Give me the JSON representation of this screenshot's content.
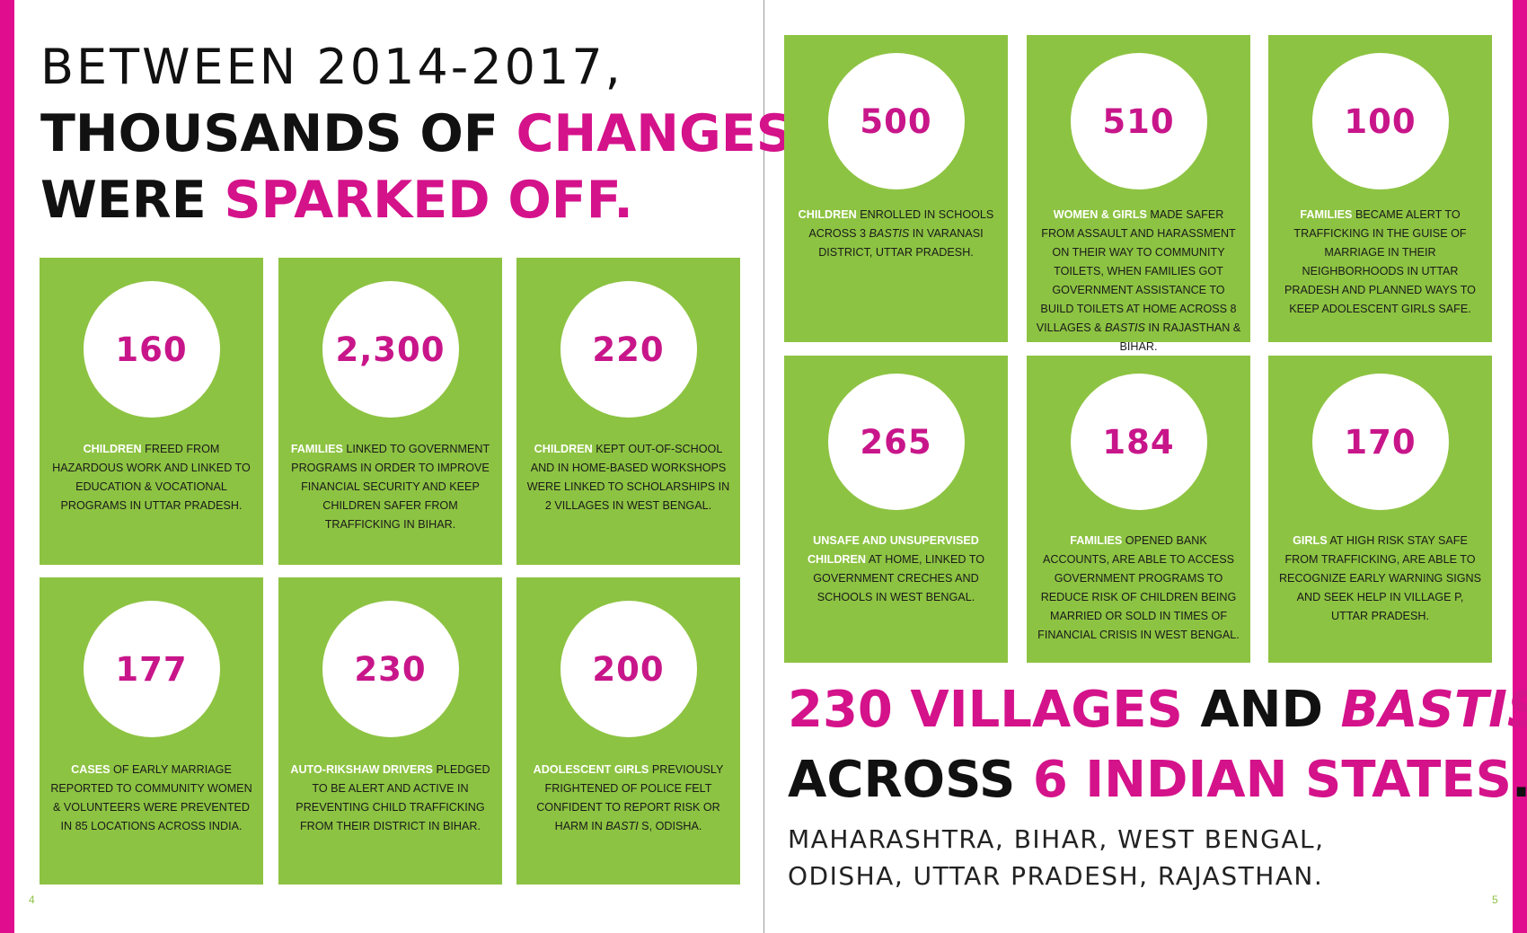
{
  "headline": {
    "line1": "BETWEEN 2014-2017,",
    "line2_a": "THOUSANDS OF ",
    "line2_b": "CHANGES",
    "line3_a": "WERE ",
    "line3_b": "SPARKED OFF."
  },
  "left_cards": [
    {
      "number": "160",
      "hl": "CHILDREN",
      "t1": " FREED FROM HAZARDOUS WORK  AND LINKED TO EDUCATION & VOCATIONAL PROGRAMS IN UTTAR PRADESH."
    },
    {
      "number": "2,300",
      "hl": "FAMILIES",
      "t1": " LINKED TO GOVERNMENT PROGRAMS IN ORDER TO IMPROVE FINANCIAL SECURITY AND KEEP CHILDREN SAFER FROM TRAFFICKING  IN BIHAR."
    },
    {
      "number": "220",
      "hl": "CHILDREN",
      "t1": " KEPT OUT-OF-SCHOOL AND IN HOME-BASED WORKSHOPS WERE LINKED TO SCHOLARSHIPS IN 2 VILLAGES IN WEST BENGAL."
    },
    {
      "number": "177",
      "hl": "CASES",
      "t1": " OF EARLY MARRIAGE REPORTED TO COMMUNITY WOMEN & VOLUNTEERS WERE PREVENTED IN 85 LOCATIONS ACROSS INDIA."
    },
    {
      "number": "230",
      "hl": "AUTO-RIKSHAW DRIVERS",
      "t1": " PLEDGED TO BE ALERT AND ACTIVE IN PREVENTING CHILD TRAFFICKING FROM THEIR DISTRICT IN BIHAR."
    },
    {
      "number": "200",
      "hl": "ADOLESCENT GIRLS",
      "t1": " PREVIOUSLY FRIGHTENED OF POLICE FELT CONFIDENT TO REPORT RISK OR HARM IN ",
      "it": "BASTI",
      "t2": " S, ODISHA."
    }
  ],
  "right_cards": [
    {
      "number": "500",
      "hl": "CHILDREN",
      "t1": " ENROLLED IN SCHOOLS ACROSS 3 ",
      "it": "BASTIS",
      "t2": " IN VARANASI DISTRICT, UTTAR PRADESH."
    },
    {
      "number": "510",
      "hl": "WOMEN & GIRLS",
      "t1": " MADE SAFER FROM ASSAULT AND HARASSMENT ON THEIR WAY TO COMMUNITY TOILETS, WHEN FAMILIES GOT GOVERNMENT ASSISTANCE TO BUILD TOILETS AT HOME ACROSS 8 VILLAGES & ",
      "it": "BASTIS",
      "t2": " IN RAJASTHAN & BIHAR."
    },
    {
      "number": "100",
      "hl": "FAMILIES",
      "t1": " BECAME ALERT TO TRAFFICKING IN THE GUISE OF MARRIAGE IN THEIR NEIGHBORHOODS IN UTTAR PRADESH AND PLANNED WAYS TO KEEP ADOLESCENT GIRLS SAFE."
    },
    {
      "number": "265",
      "hl": "UNSAFE AND UNSUPERVISED CHILDREN",
      "t1": " AT HOME, LINKED TO GOVERNMENT CRECHES AND SCHOOLS IN WEST BENGAL."
    },
    {
      "number": "184",
      "hl": "FAMILIES",
      "t1": " OPENED BANK ACCOUNTS, ARE ABLE TO ACCESS GOVERNMENT PROGRAMS TO REDUCE RISK OF CHILDREN BEING MARRIED OR SOLD IN TIMES OF FINANCIAL CRISIS IN WEST BENGAL."
    },
    {
      "number": "170",
      "hl": "GIRLS",
      "t1": " AT HIGH RISK STAY SAFE FROM TRAFFICKING, ARE ABLE TO RECOGNIZE EARLY WARNING SIGNS AND SEEK HELP IN VILLAGE P, UTTAR PRADESH."
    }
  ],
  "bottom": {
    "a1": "230 VILLAGES",
    "a2": " AND ",
    "a3": "BASTIS",
    "b1": "ACROSS ",
    "b2": "6 INDIAN STATES",
    "b3": ".",
    "states_line1": "MAHARASHTRA, BIHAR, WEST BENGAL,",
    "states_line2": "ODISHA, UTTAR PRADESH, RAJASTHAN."
  },
  "page_left": "4",
  "page_right": "5",
  "colors": {
    "magenta": "#d4128a",
    "green": "#8dc342"
  }
}
